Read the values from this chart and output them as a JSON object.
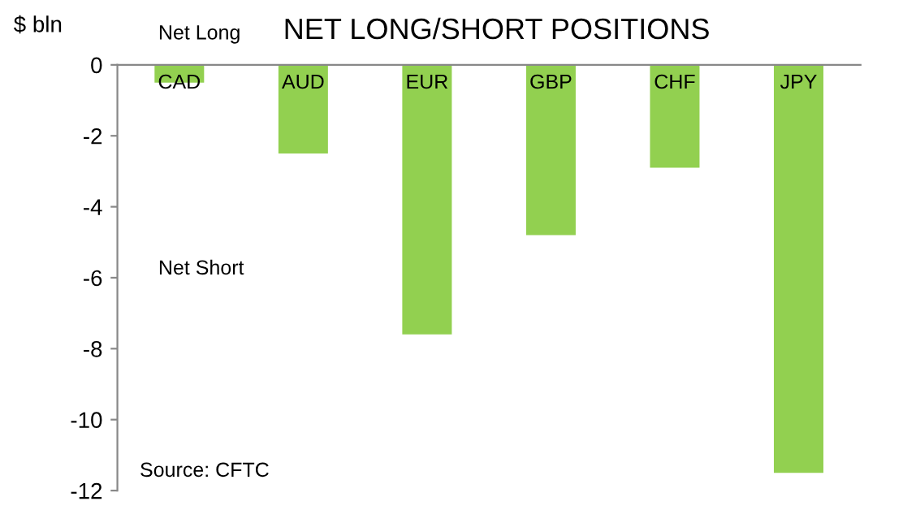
{
  "chart_data": {
    "type": "bar",
    "title": "NET LONG/SHORT POSITIONS",
    "ylabel": "$ bln",
    "categories": [
      "CAD",
      "AUD",
      "EUR",
      "GBP",
      "CHF",
      "JPY"
    ],
    "values": [
      -0.5,
      -2.5,
      -7.6,
      -4.8,
      -2.9,
      -11.5
    ],
    "color": "#92d050",
    "ylim": [
      -12,
      0
    ],
    "yticks": [
      0,
      -2,
      -4,
      -6,
      -8,
      -10,
      -12
    ],
    "grid": false,
    "annotations": [
      "Net Long",
      "Net Short",
      "Source: CFTC"
    ]
  }
}
